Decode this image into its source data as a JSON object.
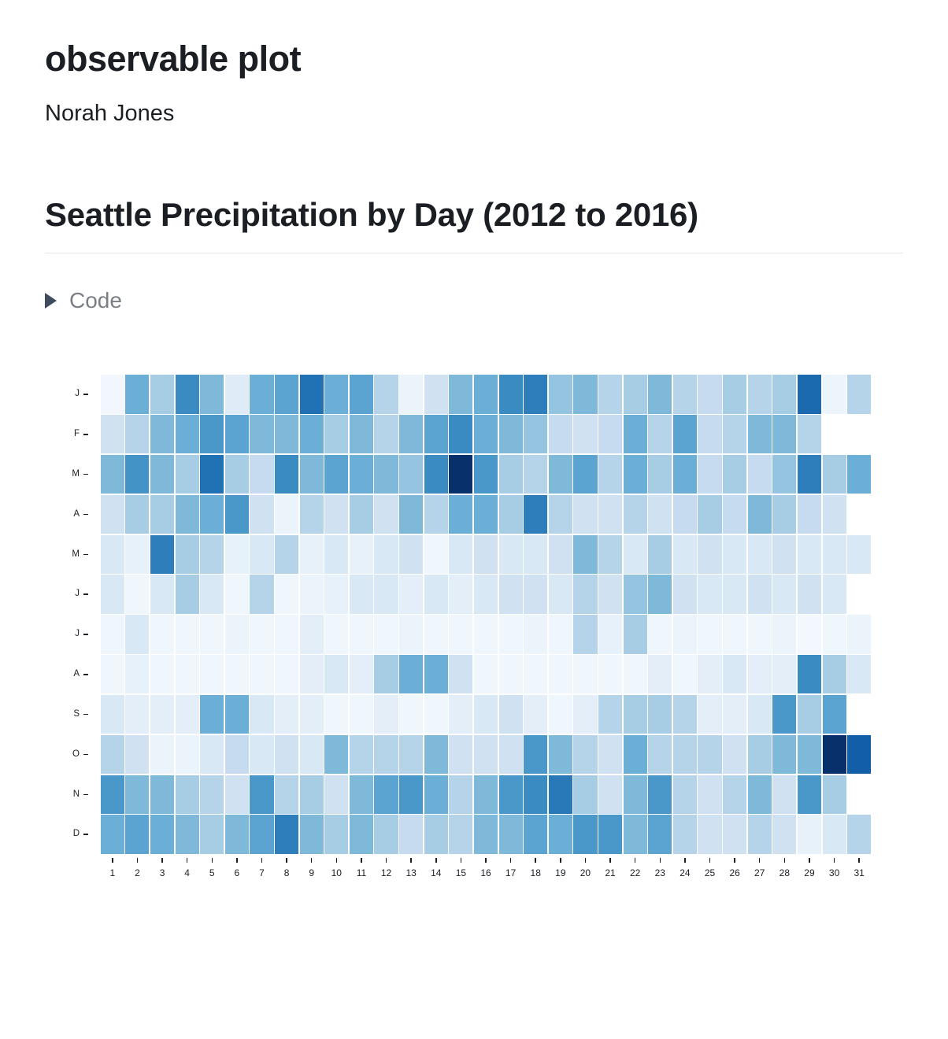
{
  "page": {
    "title": "observable plot",
    "author": "Norah Jones"
  },
  "section": {
    "heading": "Seattle Precipitation by Day (2012 to 2016)"
  },
  "code_toggle": {
    "label": "Code",
    "icon": "triangle-right",
    "caret_color": "#3e4c5e",
    "label_color": "#7b7f85"
  },
  "chart_data": {
    "type": "heatmap",
    "title": "Seattle Precipitation by Day (2012 to 2016)",
    "xlabel": "",
    "ylabel": "",
    "legend": false,
    "grid": false,
    "x": [
      1,
      2,
      3,
      4,
      5,
      6,
      7,
      8,
      9,
      10,
      11,
      12,
      13,
      14,
      15,
      16,
      17,
      18,
      19,
      20,
      21,
      22,
      23,
      24,
      25,
      26,
      27,
      28,
      29,
      30,
      31
    ],
    "y_labels": [
      "J",
      "F",
      "M",
      "A",
      "M",
      "J",
      "J",
      "A",
      "S",
      "O",
      "N",
      "D"
    ],
    "axis_color": "#1b1e23",
    "colormap": {
      "name": "Blues",
      "stops": [
        [
          0.0,
          "#f7fbff"
        ],
        [
          0.125,
          "#deebf7"
        ],
        [
          0.25,
          "#c6dbef"
        ],
        [
          0.375,
          "#9ecae1"
        ],
        [
          0.5,
          "#6baed6"
        ],
        [
          0.625,
          "#4292c6"
        ],
        [
          0.75,
          "#2171b5"
        ],
        [
          0.875,
          "#08519c"
        ],
        [
          1.0,
          "#08306b"
        ]
      ]
    },
    "values": [
      [
        0.03,
        0.5,
        0.35,
        0.65,
        0.45,
        0.12,
        0.5,
        0.55,
        0.75,
        0.5,
        0.55,
        0.3,
        0.06,
        0.2,
        0.45,
        0.5,
        0.65,
        0.7,
        0.4,
        0.45,
        0.3,
        0.35,
        0.45,
        0.3,
        0.25,
        0.35,
        0.3,
        0.35,
        0.78,
        0.05,
        0.3
      ],
      [
        0.2,
        0.3,
        0.45,
        0.5,
        0.6,
        0.55,
        0.45,
        0.45,
        0.5,
        0.35,
        0.45,
        0.3,
        0.45,
        0.55,
        0.65,
        0.5,
        0.45,
        0.4,
        0.25,
        0.2,
        0.25,
        0.5,
        0.3,
        0.55,
        0.25,
        0.3,
        0.45,
        0.45,
        0.3,
        null,
        null
      ],
      [
        0.45,
        0.62,
        0.45,
        0.35,
        0.75,
        0.35,
        0.25,
        0.65,
        0.45,
        0.55,
        0.5,
        0.45,
        0.4,
        0.65,
        1.0,
        0.6,
        0.35,
        0.3,
        0.45,
        0.55,
        0.3,
        0.5,
        0.35,
        0.5,
        0.25,
        0.35,
        0.25,
        0.4,
        0.7,
        0.35,
        0.5
      ],
      [
        0.2,
        0.35,
        0.35,
        0.45,
        0.5,
        0.6,
        0.2,
        0.06,
        0.3,
        0.2,
        0.35,
        0.2,
        0.45,
        0.3,
        0.5,
        0.5,
        0.35,
        0.7,
        0.3,
        0.2,
        0.2,
        0.3,
        0.2,
        0.25,
        0.35,
        0.25,
        0.45,
        0.35,
        0.25,
        0.2,
        null
      ],
      [
        0.15,
        0.08,
        0.7,
        0.35,
        0.3,
        0.08,
        0.15,
        0.3,
        0.08,
        0.15,
        0.08,
        0.15,
        0.2,
        0.04,
        0.15,
        0.2,
        0.15,
        0.15,
        0.2,
        0.45,
        0.3,
        0.15,
        0.35,
        0.15,
        0.2,
        0.15,
        0.15,
        0.2,
        0.15,
        0.15,
        0.15
      ],
      [
        0.15,
        0.04,
        0.15,
        0.35,
        0.15,
        0.04,
        0.3,
        0.04,
        0.06,
        0.08,
        0.15,
        0.15,
        0.1,
        0.15,
        0.1,
        0.15,
        0.2,
        0.2,
        0.15,
        0.3,
        0.2,
        0.4,
        0.45,
        0.2,
        0.15,
        0.15,
        0.2,
        0.15,
        0.2,
        0.15,
        null
      ],
      [
        0.04,
        0.15,
        0.04,
        0.04,
        0.04,
        0.06,
        0.04,
        0.04,
        0.1,
        0.04,
        0.04,
        0.04,
        0.06,
        0.04,
        0.04,
        0.04,
        0.04,
        0.06,
        0.04,
        0.3,
        0.08,
        0.35,
        0.04,
        0.06,
        0.04,
        0.04,
        0.04,
        0.06,
        0.02,
        0.04,
        0.06
      ],
      [
        0.04,
        0.08,
        0.04,
        0.04,
        0.04,
        0.04,
        0.04,
        0.04,
        0.1,
        0.15,
        0.1,
        0.35,
        0.5,
        0.5,
        0.2,
        0.04,
        0.04,
        0.04,
        0.04,
        0.04,
        0.04,
        0.04,
        0.1,
        0.04,
        0.1,
        0.15,
        0.1,
        0.1,
        0.65,
        0.35,
        0.15
      ],
      [
        0.15,
        0.1,
        0.1,
        0.1,
        0.5,
        0.5,
        0.15,
        0.1,
        0.1,
        0.04,
        0.04,
        0.1,
        0.04,
        0.04,
        0.1,
        0.15,
        0.2,
        0.1,
        0.04,
        0.1,
        0.3,
        0.35,
        0.35,
        0.3,
        0.1,
        0.1,
        0.15,
        0.6,
        0.35,
        0.55,
        null
      ],
      [
        0.3,
        0.2,
        0.06,
        0.06,
        0.15,
        0.25,
        0.15,
        0.2,
        0.15,
        0.45,
        0.3,
        0.3,
        0.3,
        0.45,
        0.2,
        0.2,
        0.2,
        0.6,
        0.45,
        0.3,
        0.2,
        0.5,
        0.3,
        0.3,
        0.3,
        0.2,
        0.35,
        0.45,
        0.45,
        1.0,
        0.82
      ],
      [
        0.6,
        0.45,
        0.45,
        0.35,
        0.3,
        0.2,
        0.6,
        0.3,
        0.35,
        0.2,
        0.45,
        0.55,
        0.6,
        0.5,
        0.3,
        0.45,
        0.6,
        0.65,
        0.72,
        0.35,
        0.2,
        0.45,
        0.6,
        0.3,
        0.2,
        0.3,
        0.45,
        0.2,
        0.6,
        0.35,
        null
      ],
      [
        0.5,
        0.55,
        0.5,
        0.45,
        0.35,
        0.45,
        0.55,
        0.7,
        0.45,
        0.35,
        0.45,
        0.35,
        0.25,
        0.35,
        0.3,
        0.45,
        0.45,
        0.55,
        0.5,
        0.6,
        0.6,
        0.45,
        0.55,
        0.3,
        0.2,
        0.2,
        0.3,
        0.2,
        0.08,
        0.15,
        0.3
      ]
    ]
  }
}
